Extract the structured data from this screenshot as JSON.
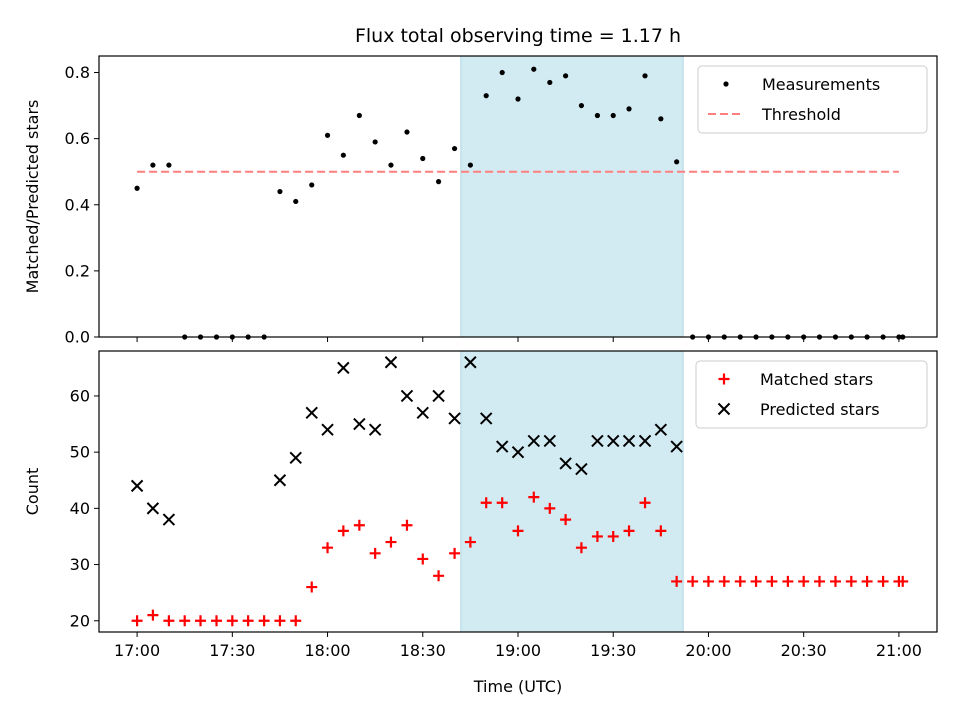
{
  "chart_data": [
    {
      "type": "scatter",
      "title": "Flux total observing time = 1.17 h",
      "xlabel": "",
      "ylabel": "Matched/Predicted stars",
      "x_unit": "hours (UTC)",
      "xlim": [
        16.8,
        21.2
      ],
      "ylim": [
        0.0,
        0.85
      ],
      "yticks": [
        0.0,
        0.2,
        0.4,
        0.6,
        0.8
      ],
      "ytick_labels": [
        "0.0",
        "0.2",
        "0.4",
        "0.6",
        "0.8"
      ],
      "shaded_span": [
        18.7,
        19.867
      ],
      "shade_color": "#add8e6",
      "legend": {
        "position": "top-right",
        "entries": [
          "Measurements",
          "Threshold"
        ]
      },
      "series": [
        {
          "name": "Measurements",
          "kind": "scatter",
          "marker": "dot",
          "color": "#000000",
          "points": [
            [
              17.0,
              0.45
            ],
            [
              17.083,
              0.52
            ],
            [
              17.167,
              0.52
            ],
            [
              17.25,
              0.0
            ],
            [
              17.333,
              0.0
            ],
            [
              17.417,
              0.0
            ],
            [
              17.5,
              0.0
            ],
            [
              17.583,
              0.0
            ],
            [
              17.667,
              0.0
            ],
            [
              17.75,
              0.44
            ],
            [
              17.833,
              0.41
            ],
            [
              17.917,
              0.46
            ],
            [
              18.0,
              0.61
            ],
            [
              18.083,
              0.55
            ],
            [
              18.167,
              0.67
            ],
            [
              18.25,
              0.59
            ],
            [
              18.333,
              0.52
            ],
            [
              18.417,
              0.62
            ],
            [
              18.5,
              0.54
            ],
            [
              18.583,
              0.47
            ],
            [
              18.667,
              0.57
            ],
            [
              18.75,
              0.52
            ],
            [
              18.833,
              0.73
            ],
            [
              18.917,
              0.8
            ],
            [
              19.0,
              0.72
            ],
            [
              19.083,
              0.81
            ],
            [
              19.167,
              0.77
            ],
            [
              19.25,
              0.79
            ],
            [
              19.333,
              0.7
            ],
            [
              19.417,
              0.67
            ],
            [
              19.5,
              0.67
            ],
            [
              19.583,
              0.69
            ],
            [
              19.667,
              0.79
            ],
            [
              19.75,
              0.66
            ],
            [
              19.833,
              0.53
            ],
            [
              19.917,
              0.0
            ],
            [
              20.0,
              0.0
            ],
            [
              20.083,
              0.0
            ],
            [
              20.167,
              0.0
            ],
            [
              20.25,
              0.0
            ],
            [
              20.333,
              0.0
            ],
            [
              20.417,
              0.0
            ],
            [
              20.5,
              0.0
            ],
            [
              20.583,
              0.0
            ],
            [
              20.667,
              0.0
            ],
            [
              20.75,
              0.0
            ],
            [
              20.833,
              0.0
            ],
            [
              20.917,
              0.0
            ],
            [
              21.0,
              0.0
            ],
            [
              21.02,
              0.0
            ]
          ]
        },
        {
          "name": "Threshold",
          "kind": "line",
          "style": "dashed",
          "color": "#ff7f7f",
          "points": [
            [
              17.0,
              0.5
            ],
            [
              21.0,
              0.5
            ]
          ]
        }
      ]
    },
    {
      "type": "scatter",
      "title": "",
      "xlabel": "Time (UTC)",
      "ylabel": "Count",
      "x_unit": "hours (UTC)",
      "xlim": [
        16.8,
        21.2
      ],
      "ylim": [
        18,
        68
      ],
      "yticks": [
        20,
        30,
        40,
        50,
        60
      ],
      "ytick_labels": [
        "20",
        "30",
        "40",
        "50",
        "60"
      ],
      "xticks": [
        17.0,
        17.5,
        18.0,
        18.5,
        19.0,
        19.5,
        20.0,
        20.5,
        21.0
      ],
      "xtick_labels": [
        "17:00",
        "17:30",
        "18:00",
        "18:30",
        "19:00",
        "19:30",
        "20:00",
        "20:30",
        "21:00"
      ],
      "shaded_span": [
        18.7,
        19.867
      ],
      "shade_color": "#add8e6",
      "legend": {
        "position": "top-right",
        "entries": [
          "Matched stars",
          "Predicted stars"
        ]
      },
      "series": [
        {
          "name": "Matched stars",
          "kind": "scatter",
          "marker": "plus",
          "color": "#ff0000",
          "points": [
            [
              17.0,
              20
            ],
            [
              17.083,
              21
            ],
            [
              17.167,
              20
            ],
            [
              17.25,
              20
            ],
            [
              17.333,
              20
            ],
            [
              17.417,
              20
            ],
            [
              17.5,
              20
            ],
            [
              17.583,
              20
            ],
            [
              17.667,
              20
            ],
            [
              17.75,
              20
            ],
            [
              17.833,
              20
            ],
            [
              17.917,
              26
            ],
            [
              18.0,
              33
            ],
            [
              18.083,
              36
            ],
            [
              18.167,
              37
            ],
            [
              18.25,
              32
            ],
            [
              18.333,
              34
            ],
            [
              18.417,
              37
            ],
            [
              18.5,
              31
            ],
            [
              18.583,
              28
            ],
            [
              18.667,
              32
            ],
            [
              18.75,
              34
            ],
            [
              18.833,
              41
            ],
            [
              18.917,
              41
            ],
            [
              19.0,
              36
            ],
            [
              19.083,
              42
            ],
            [
              19.167,
              40
            ],
            [
              19.25,
              38
            ],
            [
              19.333,
              33
            ],
            [
              19.417,
              35
            ],
            [
              19.5,
              35
            ],
            [
              19.583,
              36
            ],
            [
              19.667,
              41
            ],
            [
              19.75,
              36
            ],
            [
              19.833,
              27
            ],
            [
              19.917,
              27
            ],
            [
              20.0,
              27
            ],
            [
              20.083,
              27
            ],
            [
              20.167,
              27
            ],
            [
              20.25,
              27
            ],
            [
              20.333,
              27
            ],
            [
              20.417,
              27
            ],
            [
              20.5,
              27
            ],
            [
              20.583,
              27
            ],
            [
              20.667,
              27
            ],
            [
              20.75,
              27
            ],
            [
              20.833,
              27
            ],
            [
              20.917,
              27
            ],
            [
              21.0,
              27
            ],
            [
              21.02,
              27
            ]
          ]
        },
        {
          "name": "Predicted stars",
          "kind": "scatter",
          "marker": "x",
          "color": "#000000",
          "points": [
            [
              17.0,
              44
            ],
            [
              17.083,
              40
            ],
            [
              17.167,
              38
            ],
            [
              17.75,
              45
            ],
            [
              17.833,
              49
            ],
            [
              17.917,
              57
            ],
            [
              18.0,
              54
            ],
            [
              18.083,
              65
            ],
            [
              18.167,
              55
            ],
            [
              18.25,
              54
            ],
            [
              18.333,
              66
            ],
            [
              18.417,
              60
            ],
            [
              18.5,
              57
            ],
            [
              18.583,
              60
            ],
            [
              18.667,
              56
            ],
            [
              18.75,
              66
            ],
            [
              18.833,
              56
            ],
            [
              18.917,
              51
            ],
            [
              19.0,
              50
            ],
            [
              19.083,
              52
            ],
            [
              19.167,
              52
            ],
            [
              19.25,
              48
            ],
            [
              19.333,
              47
            ],
            [
              19.417,
              52
            ],
            [
              19.5,
              52
            ],
            [
              19.583,
              52
            ],
            [
              19.667,
              52
            ],
            [
              19.75,
              54
            ],
            [
              19.833,
              51
            ]
          ]
        }
      ]
    }
  ]
}
